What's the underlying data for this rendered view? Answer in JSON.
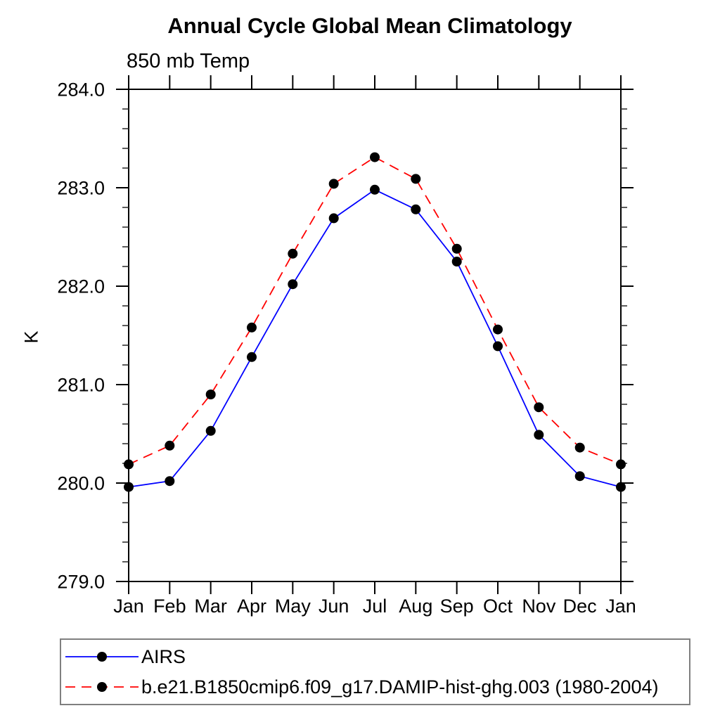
{
  "chart_data": {
    "type": "line",
    "title": "Annual Cycle Global Mean Climatology",
    "subtitle": "850 mb Temp",
    "ylabel": "K",
    "xlabel": "",
    "grid": false,
    "legend_position": "bottom",
    "ylim": [
      279.0,
      284.0
    ],
    "ytick_minor_step": 0.2,
    "yticks": [
      {
        "value": 279.0,
        "label": "279.0"
      },
      {
        "value": 280.0,
        "label": "280.0"
      },
      {
        "value": 281.0,
        "label": "281.0"
      },
      {
        "value": 282.0,
        "label": "282.0"
      },
      {
        "value": 283.0,
        "label": "283.0"
      },
      {
        "value": 284.0,
        "label": "284.0"
      }
    ],
    "categories": [
      "Jan",
      "Feb",
      "Mar",
      "Apr",
      "May",
      "Jun",
      "Jul",
      "Aug",
      "Sep",
      "Oct",
      "Nov",
      "Dec",
      "Jan"
    ],
    "series": [
      {
        "name": "AIRS",
        "color": "#0000ff",
        "line_style": "solid",
        "marker_color": "#000000",
        "values": [
          279.96,
          280.02,
          280.53,
          281.28,
          282.02,
          282.69,
          282.98,
          282.78,
          282.25,
          281.39,
          280.49,
          280.07,
          279.96
        ]
      },
      {
        "name": "b.e21.B1850cmip6.f09_g17.DAMIP-hist-ghg.003 (1980-2004)",
        "color": "#ff0000",
        "line_style": "dashed",
        "marker_color": "#000000",
        "values": [
          280.19,
          280.38,
          280.9,
          281.58,
          282.33,
          283.04,
          283.31,
          283.09,
          282.38,
          281.56,
          280.77,
          280.36,
          280.19
        ]
      }
    ]
  }
}
